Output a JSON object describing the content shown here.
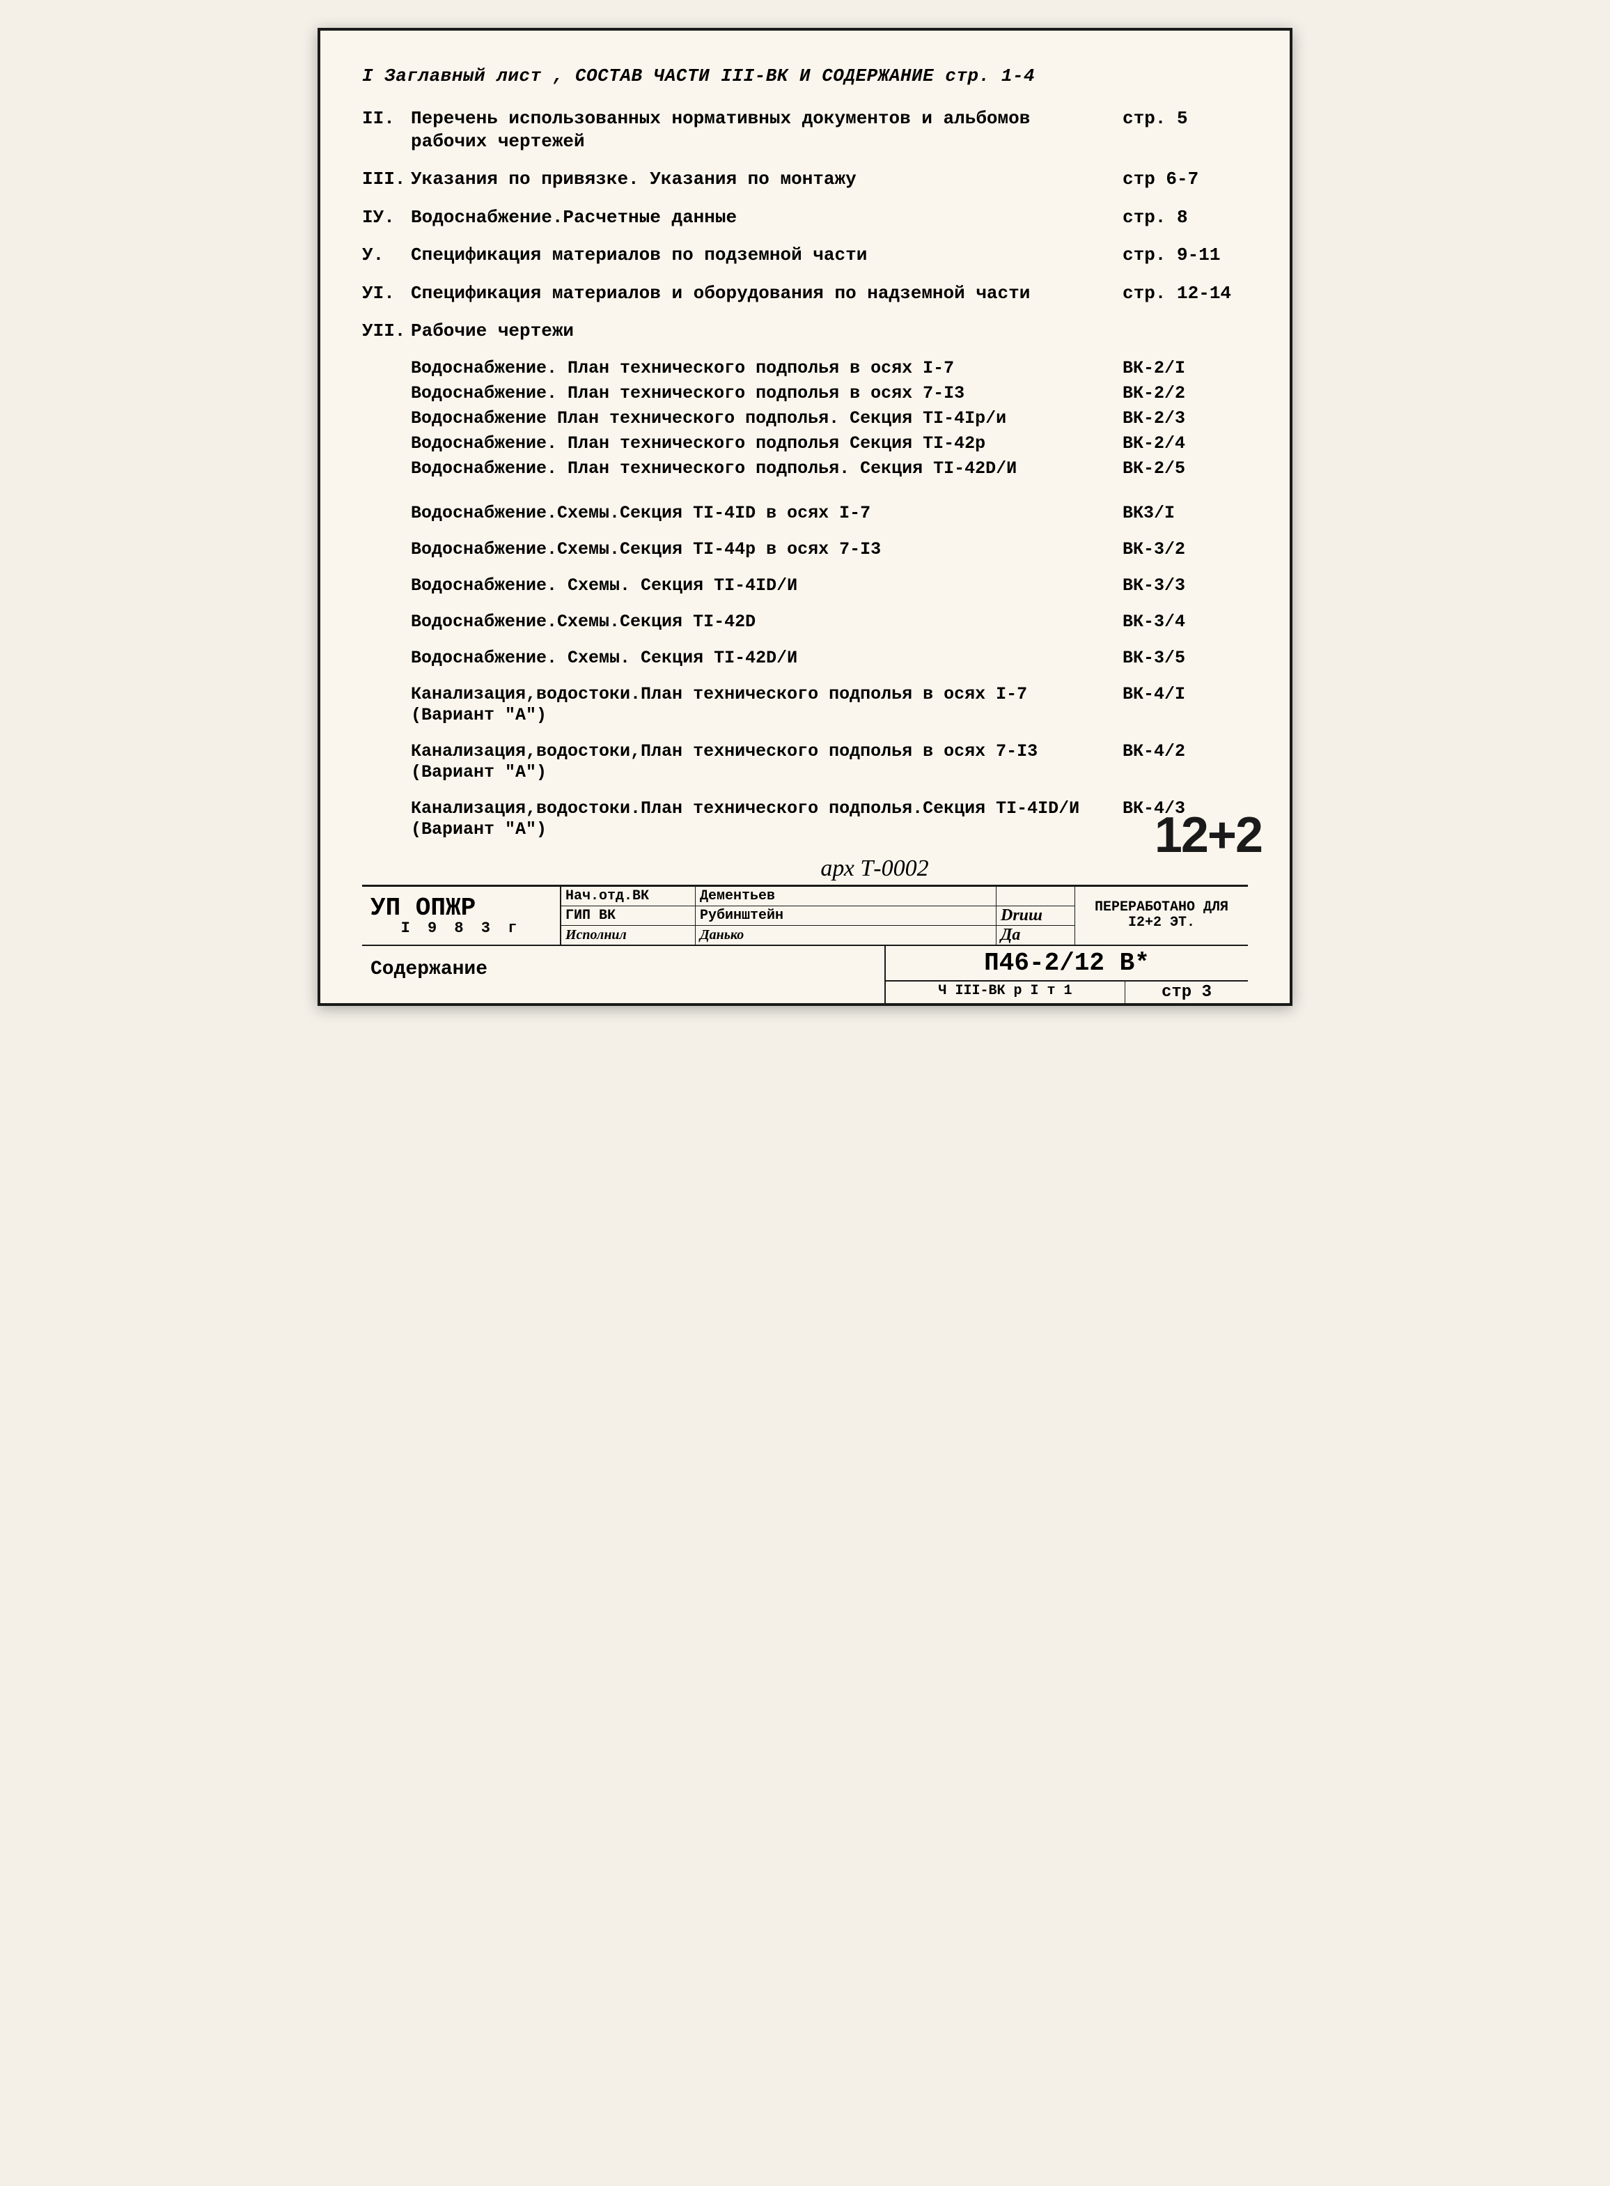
{
  "header": {
    "line": "I Заглавный лист , СОСТАВ ЧАСТИ III-ВК И СОДЕРЖАНИЕ стр. 1-4"
  },
  "toc": [
    {
      "num": "II.",
      "desc": "Перечень использованных нормативных документов и альбомов рабочих чертежей",
      "page": "стр. 5"
    },
    {
      "num": "III.",
      "desc": "Указания по привязке. Указания по монтажу",
      "page": "стр 6-7"
    },
    {
      "num": "IУ.",
      "desc": "Водоснабжение.Расчетные данные",
      "page": "стр. 8"
    },
    {
      "num": "У.",
      "desc": "Спецификация материалов по подземной части",
      "page": "стр. 9-11"
    },
    {
      "num": "УI.",
      "desc": "Спецификация материалов и оборудования по надземной части",
      "page": "стр. 12-14"
    },
    {
      "num": "УII.",
      "desc": "Рабочие чертежи",
      "page": ""
    }
  ],
  "drawings": [
    {
      "desc": "Водоснабжение. План технического подполья в осях I-7",
      "code": "ВК-2/I"
    },
    {
      "desc": "Водоснабжение. План технического подполья в осях 7-I3",
      "code": "ВК-2/2"
    },
    {
      "desc": "Водоснабжение  План технического подполья. Секция ТI-4Iр/и",
      "code": "ВК-2/3"
    },
    {
      "desc": "Водоснабжение. План технического подполья  Секция ТI-42р",
      "code": "ВК-2/4"
    },
    {
      "desc": "Водоснабжение. План технического подполья. Секция ТI-42D/И",
      "code": "ВК-2/5"
    }
  ],
  "drawings2": [
    {
      "desc": "Водоснабжение.Схемы.Секция ТI-4ID в осях I-7",
      "code": "ВК3/I"
    },
    {
      "desc": "Водоснабжение.Схемы.Секция ТI-44р в осях 7-I3",
      "code": "ВК-3/2"
    },
    {
      "desc": "Водоснабжение. Схемы. Секция ТI-4ID/И",
      "code": "ВК-3/3"
    },
    {
      "desc": "Водоснабжение.Схемы.Секция ТI-42D",
      "code": "ВК-3/4"
    },
    {
      "desc": "Водоснабжение. Схемы. Секция ТI-42D/И",
      "code": "ВК-3/5"
    },
    {
      "desc": "Канализация,водостоки.План технического подполья в осях I-7 (Вариант \"А\")",
      "code": "ВК-4/I"
    },
    {
      "desc": "Канализация,водостоки,План технического подполья в осях 7-I3 (Вариант \"А\")",
      "code": "ВК-4/2"
    },
    {
      "desc": "Канализация,водостоки.План технического подполья.Секция ТI-4ID/И (Вариант \"А\")",
      "code": "ВК-4/3"
    }
  ],
  "arch_note": "арх Т-0002",
  "stamp": "12+2",
  "titleblock": {
    "org": "УП ОПЖР",
    "year": "I 9 8 3 г",
    "rows": [
      {
        "role": "Нач.отд.ВК",
        "name": "Дементьев",
        "sign": ""
      },
      {
        "role": "ГИП ВК",
        "name": "Рубинштейн",
        "sign": "Druш"
      },
      {
        "role": "Исполнил",
        "name": "Данько",
        "sign": "Да"
      }
    ],
    "right": "ПЕРЕРАБОТАНО ДЛЯ I2+2 ЭТ."
  },
  "bottom": {
    "left": "Содержание",
    "code": "П46-2/12 В*",
    "sub_left": "Ч III-ВК р I т 1",
    "sub_right": "стр 3"
  }
}
